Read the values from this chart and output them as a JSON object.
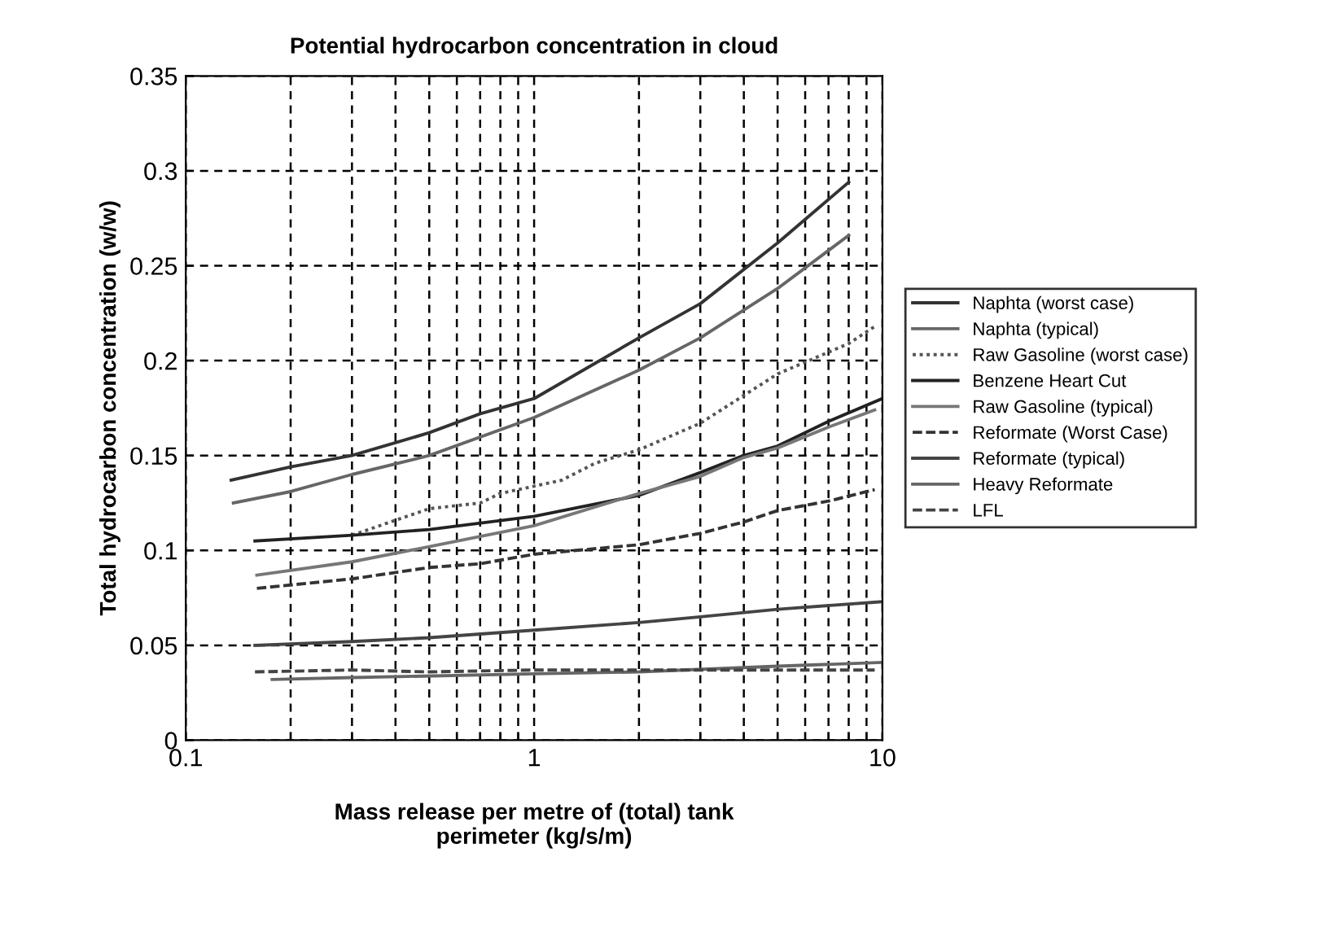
{
  "chart_data": {
    "type": "line",
    "title": "Potential hydrocarbon concentration in cloud",
    "xlabel": "Mass release per metre of (total) tank\nperimeter (kg/s/m)",
    "ylabel": "Total hydrocarbon concentration (w/w)",
    "log": "x",
    "grid": true,
    "legend": "right",
    "marker": "none",
    "xlim": [
      0.1,
      10
    ],
    "xticks": [
      0.1,
      {
        "value": 0.2,
        "label": null
      },
      {
        "value": 0.3,
        "label": null
      },
      {
        "value": 0.4,
        "label": null
      },
      {
        "value": 0.5,
        "label": null
      },
      {
        "value": 0.6,
        "label": null
      },
      {
        "value": 0.7,
        "label": null
      },
      {
        "value": 0.8,
        "label": null
      },
      {
        "value": 0.9,
        "label": null
      },
      1,
      {
        "value": 2,
        "label": null
      },
      {
        "value": 3,
        "label": null
      },
      {
        "value": 4,
        "label": null
      },
      {
        "value": 5,
        "label": null
      },
      {
        "value": 6,
        "label": null
      },
      {
        "value": 7,
        "label": null
      },
      {
        "value": 8,
        "label": null
      },
      {
        "value": 9,
        "label": null
      },
      10
    ],
    "ylim": [
      0,
      0.35
    ],
    "yticks": [
      0,
      0.05,
      0.1,
      0.15,
      0.2,
      0.25,
      0.3,
      0.35
    ],
    "series": [
      {
        "name": "Naphta (worst case)",
        "color": "#333333",
        "line_style": "solid",
        "x": [
          0.135,
          0.2,
          0.3,
          0.5,
          0.7,
          1,
          2,
          3,
          5,
          8
        ],
        "values": [
          0.137,
          0.144,
          0.15,
          0.162,
          0.172,
          0.18,
          0.212,
          0.23,
          0.262,
          0.294
        ]
      },
      {
        "name": "Naphta (typical)",
        "color": "#666666",
        "line_style": "solid",
        "x": [
          0.137,
          0.2,
          0.3,
          0.5,
          1,
          2,
          3,
          5,
          8
        ],
        "values": [
          0.125,
          0.131,
          0.14,
          0.15,
          0.17,
          0.195,
          0.212,
          0.238,
          0.266
        ]
      },
      {
        "name": "Raw Gasoline (worst case)",
        "color": "#555555",
        "line_style": "dotted",
        "x": [
          0.3,
          0.5,
          0.7,
          0.8,
          1.2,
          1.5,
          2,
          3,
          5,
          8,
          9.5
        ],
        "values": [
          0.108,
          0.122,
          0.125,
          0.13,
          0.137,
          0.146,
          0.153,
          0.167,
          0.193,
          0.209,
          0.218
        ]
      },
      {
        "name": "Benzene Heart Cut",
        "color": "#222222",
        "line_style": "solid",
        "x": [
          0.158,
          0.3,
          0.5,
          1,
          2,
          3,
          4,
          5,
          7,
          10
        ],
        "values": [
          0.105,
          0.108,
          0.111,
          0.118,
          0.129,
          0.141,
          0.15,
          0.155,
          0.168,
          0.18
        ]
      },
      {
        "name": "Raw Gasoline (typical)",
        "color": "#777777",
        "line_style": "solid",
        "x": [
          0.16,
          0.3,
          0.5,
          1,
          2,
          3,
          4,
          5,
          7,
          9.5
        ],
        "values": [
          0.087,
          0.094,
          0.102,
          0.113,
          0.13,
          0.139,
          0.149,
          0.154,
          0.165,
          0.174
        ]
      },
      {
        "name": "Reformate (Worst Case)",
        "color": "#333333",
        "line_style": "dashed",
        "x": [
          0.16,
          0.3,
          0.5,
          0.7,
          1,
          2,
          3,
          4,
          5,
          7,
          9.5
        ],
        "values": [
          0.08,
          0.085,
          0.091,
          0.093,
          0.098,
          0.103,
          0.109,
          0.115,
          0.121,
          0.126,
          0.132
        ]
      },
      {
        "name": "Reformate (typical)",
        "color": "#444444",
        "line_style": "solid",
        "x": [
          0.158,
          0.3,
          0.5,
          1,
          2,
          3,
          5,
          10
        ],
        "values": [
          0.05,
          0.052,
          0.054,
          0.058,
          0.062,
          0.065,
          0.069,
          0.073
        ]
      },
      {
        "name": "Heavy Reformate",
        "color": "#666666",
        "line_style": "solid",
        "x": [
          0.177,
          0.3,
          1,
          2,
          5,
          10
        ],
        "values": [
          0.032,
          0.033,
          0.035,
          0.036,
          0.039,
          0.041
        ]
      },
      {
        "name": "LFL",
        "color": "#444444",
        "line_style": "dashed",
        "x": [
          0.158,
          0.3,
          0.5,
          1,
          2,
          9.5
        ],
        "values": [
          0.036,
          0.037,
          0.036,
          0.037,
          0.037,
          0.037
        ]
      }
    ]
  }
}
